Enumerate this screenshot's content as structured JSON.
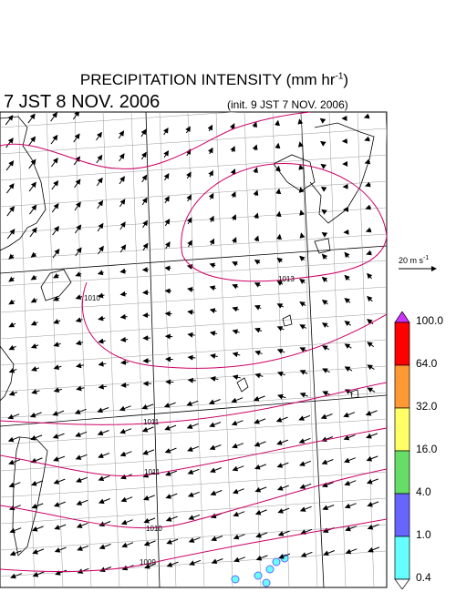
{
  "header": {
    "title": "PRECIPITATION INTENSITY (mm hr",
    "title_exp": "-1",
    "title_end": ")",
    "valid_time": "7 JST 8 NOV. 2006",
    "init_time": "(init. 9 JST 7 NOV. 2006)"
  },
  "wind_reference": {
    "label": "20 m s",
    "label_exp": "-1"
  },
  "isobars": [
    "1013",
    "1010",
    "1011",
    "1011",
    "1010",
    "1009",
    "1008"
  ],
  "colorbar": {
    "levels": [
      "100.0",
      "64.0",
      "32.0",
      "16.0",
      "4.0",
      "1.0",
      "0.4"
    ],
    "colors": [
      "#ff0000",
      "#ff9933",
      "#ffff66",
      "#66dd66",
      "#6666ff",
      "#66ffff"
    ],
    "over_color": "#cc33ff"
  },
  "colors": {
    "isobar": "#cc0066",
    "grid": "#999999",
    "coast": "#000000"
  }
}
